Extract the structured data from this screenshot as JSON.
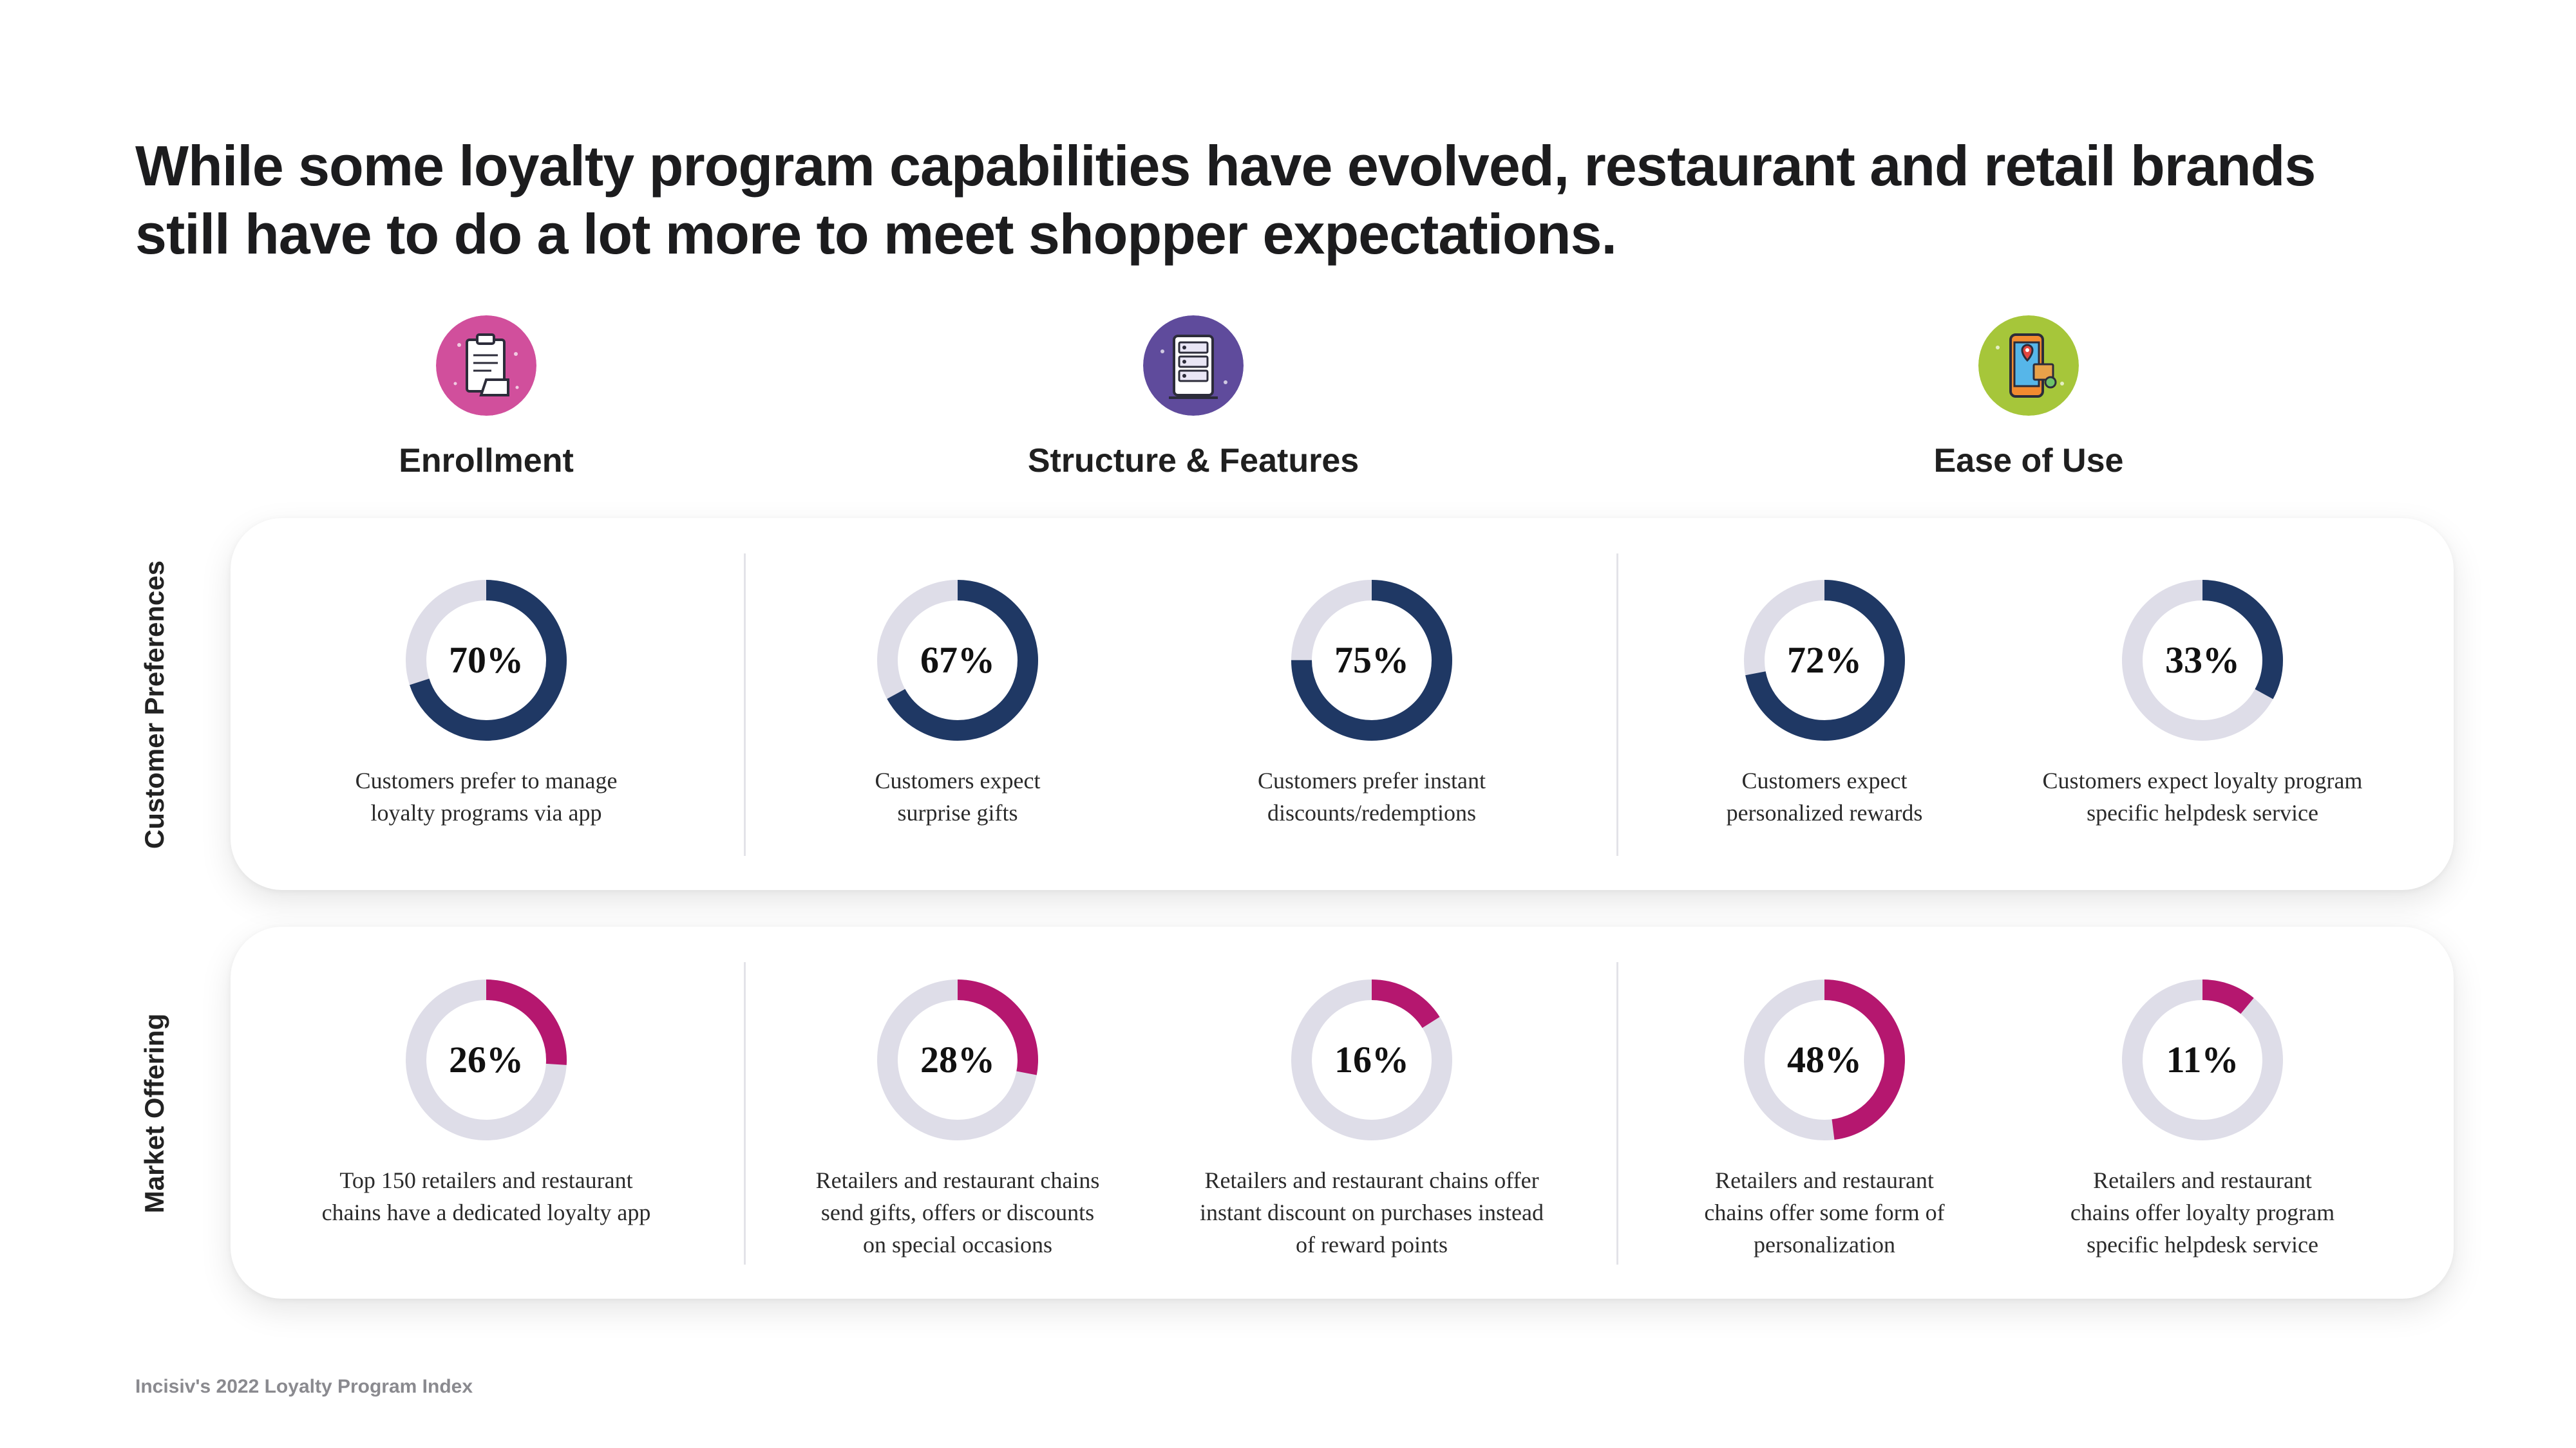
{
  "headline": {
    "line1": "While some loyalty program capabilities have evolved, restaurant and retail brands",
    "line2": "still have to do a lot more to meet shopper expectations."
  },
  "categories": [
    {
      "label": "Enrollment",
      "icon": "clipboard-icon",
      "color": "#d14f9c"
    },
    {
      "label": "Structure & Features",
      "icon": "server-icon",
      "color": "#5f4b9c"
    },
    {
      "label": "Ease of Use",
      "icon": "mobile-map-icon",
      "color": "#a6c63a"
    }
  ],
  "rows": {
    "preferences": "Customer Preferences",
    "offering": "Market Offering"
  },
  "colors": {
    "preferences": "#1f3864",
    "offering": "#b5176f",
    "track": "#dedde8"
  },
  "chart_data": [
    {
      "type": "pie",
      "series": "Customer Preferences",
      "values": [
        {
          "value": 70,
          "label": "70%",
          "desc": [
            "Customers prefer to manage",
            "loyalty programs via app"
          ]
        },
        {
          "value": 67,
          "label": "67%",
          "desc": [
            "Customers expect",
            "surprise gifts"
          ]
        },
        {
          "value": 75,
          "label": "75%",
          "desc": [
            "Customers prefer instant",
            "discounts/redemptions"
          ]
        },
        {
          "value": 72,
          "label": "72%",
          "desc": [
            "Customers expect",
            "personalized rewards"
          ]
        },
        {
          "value": 33,
          "label": "33%",
          "desc": [
            "Customers expect loyalty program",
            "specific helpdesk service"
          ]
        }
      ]
    },
    {
      "type": "pie",
      "series": "Market Offering",
      "values": [
        {
          "value": 26,
          "label": "26%",
          "desc": [
            "Top 150 retailers and restaurant",
            "chains have a dedicated loyalty app"
          ]
        },
        {
          "value": 28,
          "label": "28%",
          "desc": [
            "Retailers and restaurant chains",
            "send gifts, offers or discounts",
            "on special occasions"
          ]
        },
        {
          "value": 16,
          "label": "16%",
          "desc": [
            "Retailers and restaurant chains offer",
            "instant discount on purchases instead",
            "of reward points"
          ]
        },
        {
          "value": 48,
          "label": "48%",
          "desc": [
            "Retailers and restaurant",
            "chains offer some form of",
            "personalization"
          ]
        },
        {
          "value": 11,
          "label": "11%",
          "desc": [
            "Retailers and restaurant",
            "chains offer loyalty program",
            "specific helpdesk service"
          ]
        }
      ]
    }
  ],
  "footer": "Incisiv's 2022  Loyalty Program  Index"
}
